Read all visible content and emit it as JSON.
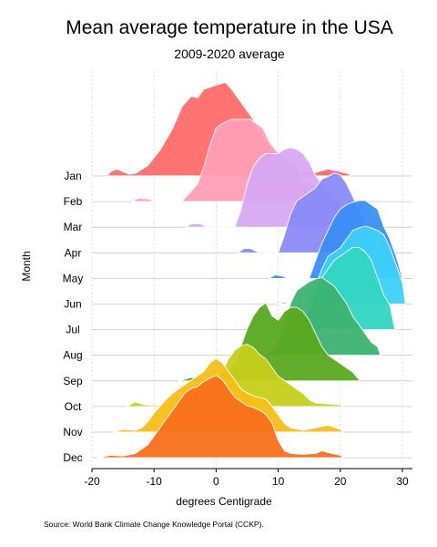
{
  "chart_data": {
    "type": "ridgeline",
    "title": "Mean average temperature in the USA",
    "subtitle": "2009-2020 average",
    "xlabel": "degrees Centigrade",
    "ylabel": "Month",
    "source": "Source: World Bank Climate Change Knowledge Portal (CCKP).",
    "xlim": [
      -20,
      30
    ],
    "x_ticks": [
      -20,
      -10,
      0,
      10,
      20,
      30
    ],
    "x_tick_labels": [
      "-20",
      "-10",
      "0",
      "10",
      "20",
      "30"
    ],
    "grid_x": true,
    "grid_y": true,
    "series": [
      {
        "name": "Jan",
        "color": "#FF6B6B",
        "points": [
          [
            -17.5,
            0
          ],
          [
            -17,
            0.05
          ],
          [
            -16,
            0.08
          ],
          [
            -14,
            0.02
          ],
          [
            -13,
            0.03
          ],
          [
            -11,
            0.12
          ],
          [
            -9,
            0.3
          ],
          [
            -7,
            0.55
          ],
          [
            -5.5,
            0.8
          ],
          [
            -4,
            0.92
          ],
          [
            -3,
            0.9
          ],
          [
            -2,
            1.0
          ],
          [
            0,
            1.05
          ],
          [
            1.5,
            1.08
          ],
          [
            2.5,
            1.0
          ],
          [
            4,
            0.85
          ],
          [
            6,
            0.65
          ],
          [
            7.5,
            0.45
          ],
          [
            9,
            0.3
          ],
          [
            10.5,
            0.12
          ],
          [
            12,
            0.05
          ],
          [
            14,
            0.05
          ],
          [
            16,
            0.04
          ],
          [
            18,
            0.08
          ],
          [
            20,
            0.05
          ],
          [
            21.5,
            0.02
          ]
        ]
      },
      {
        "name": "Feb",
        "color": "#FF9EB5",
        "points": [
          [
            -13.5,
            0
          ],
          [
            -12.5,
            0.04
          ],
          [
            -11,
            0.03
          ],
          [
            -9.5,
            0.0
          ],
          [
            -5.5,
            0
          ],
          [
            -4.5,
            0.08
          ],
          [
            -3,
            0.2
          ],
          [
            -2,
            0.4
          ],
          [
            -1,
            0.65
          ],
          [
            0,
            0.85
          ],
          [
            1,
            0.9
          ],
          [
            2.5,
            0.95
          ],
          [
            4,
            0.95
          ],
          [
            5.5,
            0.95
          ],
          [
            6.5,
            0.9
          ],
          [
            7.5,
            0.85
          ],
          [
            8.5,
            0.7
          ],
          [
            9.5,
            0.6
          ],
          [
            11,
            0.5
          ],
          [
            12,
            0.45
          ],
          [
            13,
            0.4
          ],
          [
            14,
            0.25
          ],
          [
            15.5,
            0.2
          ],
          [
            17,
            0.16
          ],
          [
            18,
            0.1
          ],
          [
            19,
            0.05
          ],
          [
            20,
            0.0
          ]
        ]
      },
      {
        "name": "Mar",
        "color": "#D7A8F2",
        "points": [
          [
            -5,
            0
          ],
          [
            -4,
            0.04
          ],
          [
            -2.5,
            0.04
          ],
          [
            -1.5,
            0.0
          ],
          [
            3,
            0
          ],
          [
            4,
            0.2
          ],
          [
            5,
            0.5
          ],
          [
            6,
            0.7
          ],
          [
            7,
            0.8
          ],
          [
            8,
            0.85
          ],
          [
            9,
            0.85
          ],
          [
            10,
            0.85
          ],
          [
            11,
            0.9
          ],
          [
            12,
            0.92
          ],
          [
            13,
            0.9
          ],
          [
            14,
            0.85
          ],
          [
            15,
            0.75
          ],
          [
            16,
            0.6
          ],
          [
            17,
            0.5
          ],
          [
            18,
            0.4
          ],
          [
            19,
            0.35
          ],
          [
            20,
            0.25
          ],
          [
            22,
            0.12
          ],
          [
            24,
            0.0
          ]
        ]
      },
      {
        "name": "Apr",
        "color": "#8A8AF8",
        "points": [
          [
            3.5,
            0
          ],
          [
            4.5,
            0.05
          ],
          [
            5.5,
            0.05
          ],
          [
            7,
            0.0
          ],
          [
            10,
            0
          ],
          [
            11,
            0.2
          ],
          [
            12,
            0.45
          ],
          [
            13,
            0.6
          ],
          [
            14,
            0.65
          ],
          [
            15,
            0.7
          ],
          [
            16,
            0.75
          ],
          [
            17,
            0.85
          ],
          [
            18,
            0.88
          ],
          [
            19,
            0.92
          ],
          [
            20,
            0.9
          ],
          [
            21,
            0.8
          ],
          [
            22,
            0.65
          ],
          [
            23,
            0.5
          ],
          [
            24,
            0.35
          ],
          [
            25,
            0.2
          ],
          [
            26,
            0.0
          ]
        ]
      },
      {
        "name": "May",
        "color": "#3B8EF8",
        "points": [
          [
            8.5,
            0
          ],
          [
            9.5,
            0.04
          ],
          [
            10.5,
            0.03
          ],
          [
            11.5,
            0.0
          ],
          [
            15,
            0
          ],
          [
            16,
            0.2
          ],
          [
            17,
            0.4
          ],
          [
            18,
            0.55
          ],
          [
            19,
            0.7
          ],
          [
            20,
            0.8
          ],
          [
            21,
            0.85
          ],
          [
            22,
            0.88
          ],
          [
            23,
            0.9
          ],
          [
            24,
            0.9
          ],
          [
            25,
            0.85
          ],
          [
            26,
            0.8
          ],
          [
            27,
            0.6
          ],
          [
            28,
            0.45
          ],
          [
            29,
            0.25
          ],
          [
            30,
            0.0
          ]
        ]
      },
      {
        "name": "Jun",
        "color": "#3DD0F8",
        "points": [
          [
            10,
            0
          ],
          [
            11,
            0.02
          ],
          [
            12,
            0.0
          ],
          [
            14,
            0
          ],
          [
            15,
            0.05
          ],
          [
            16,
            0.2
          ],
          [
            17,
            0.4
          ],
          [
            18,
            0.55
          ],
          [
            19,
            0.6
          ],
          [
            20,
            0.65
          ],
          [
            21,
            0.75
          ],
          [
            22,
            0.85
          ],
          [
            23,
            0.88
          ],
          [
            24,
            0.9
          ],
          [
            25,
            0.88
          ],
          [
            26,
            0.85
          ],
          [
            27,
            0.8
          ],
          [
            28,
            0.65
          ],
          [
            29,
            0.45
          ],
          [
            30,
            0.25
          ],
          [
            30.5,
            0.0
          ]
        ]
      },
      {
        "name": "Jul",
        "color": "#33D6C2",
        "points": [
          [
            12,
            0
          ],
          [
            14,
            0.08
          ],
          [
            15,
            0.25
          ],
          [
            16,
            0.45
          ],
          [
            17,
            0.6
          ],
          [
            18,
            0.7
          ],
          [
            19,
            0.8
          ],
          [
            20,
            0.85
          ],
          [
            21,
            0.9
          ],
          [
            22,
            0.95
          ],
          [
            23,
            0.95
          ],
          [
            24,
            0.9
          ],
          [
            25,
            0.8
          ],
          [
            26,
            0.6
          ],
          [
            27,
            0.4
          ],
          [
            28,
            0.28
          ],
          [
            28.8,
            0.0
          ]
        ]
      },
      {
        "name": "Aug",
        "color": "#3CB371",
        "points": [
          [
            7.5,
            0
          ],
          [
            9,
            0.05
          ],
          [
            10,
            0.15
          ],
          [
            11,
            0.35
          ],
          [
            12,
            0.6
          ],
          [
            13,
            0.75
          ],
          [
            14,
            0.8
          ],
          [
            15,
            0.85
          ],
          [
            16,
            0.88
          ],
          [
            17,
            0.9
          ],
          [
            18,
            0.85
          ],
          [
            19,
            0.8
          ],
          [
            20,
            0.7
          ],
          [
            21,
            0.6
          ],
          [
            22,
            0.45
          ],
          [
            23,
            0.35
          ],
          [
            24,
            0.25
          ],
          [
            25,
            0.15
          ],
          [
            26,
            0.1
          ],
          [
            26.5,
            0.0
          ]
        ]
      },
      {
        "name": "Sep",
        "color": "#5AA820",
        "points": [
          [
            -6,
            0
          ],
          [
            -4,
            0.04
          ],
          [
            -2,
            0.02
          ],
          [
            1,
            0.04
          ],
          [
            3,
            0.2
          ],
          [
            4,
            0.4
          ],
          [
            5,
            0.6
          ],
          [
            6,
            0.75
          ],
          [
            7,
            0.85
          ],
          [
            8,
            0.9
          ],
          [
            9,
            0.75
          ],
          [
            10,
            0.7
          ],
          [
            11,
            0.8
          ],
          [
            12,
            0.85
          ],
          [
            13,
            0.85
          ],
          [
            14,
            0.8
          ],
          [
            15,
            0.7
          ],
          [
            16,
            0.55
          ],
          [
            17,
            0.4
          ],
          [
            18,
            0.3
          ],
          [
            19,
            0.25
          ],
          [
            20,
            0.2
          ],
          [
            21,
            0.15
          ],
          [
            22,
            0.1
          ],
          [
            23.2,
            0.0
          ]
        ]
      },
      {
        "name": "Oct",
        "color": "#C7CF1A",
        "points": [
          [
            -14.5,
            0
          ],
          [
            -13,
            0.05
          ],
          [
            -11.5,
            0.02
          ],
          [
            -4,
            0
          ],
          [
            -2,
            0.1
          ],
          [
            -1,
            0.2
          ],
          [
            0,
            0.3
          ],
          [
            1,
            0.4
          ],
          [
            2,
            0.55
          ],
          [
            3,
            0.65
          ],
          [
            4,
            0.7
          ],
          [
            5,
            0.72
          ],
          [
            6,
            0.68
          ],
          [
            7,
            0.6
          ],
          [
            8,
            0.55
          ],
          [
            9,
            0.45
          ],
          [
            10,
            0.35
          ],
          [
            11,
            0.3
          ],
          [
            12,
            0.25
          ],
          [
            13,
            0.2
          ],
          [
            14,
            0.15
          ],
          [
            15,
            0.08
          ],
          [
            16,
            0.04
          ],
          [
            18,
            0.03
          ],
          [
            20,
            0.02
          ],
          [
            20.5,
            0.0
          ]
        ]
      },
      {
        "name": "Nov",
        "color": "#F6BE16",
        "points": [
          [
            -16.5,
            0
          ],
          [
            -15,
            0.03
          ],
          [
            -13,
            0.02
          ],
          [
            -12,
            0.05
          ],
          [
            -11,
            0.12
          ],
          [
            -10,
            0.22
          ],
          [
            -9,
            0.3
          ],
          [
            -8,
            0.38
          ],
          [
            -7,
            0.45
          ],
          [
            -6,
            0.5
          ],
          [
            -5,
            0.55
          ],
          [
            -4,
            0.6
          ],
          [
            -3,
            0.65
          ],
          [
            -2,
            0.7
          ],
          [
            -1,
            0.8
          ],
          [
            0,
            0.85
          ],
          [
            1,
            0.8
          ],
          [
            2,
            0.7
          ],
          [
            3,
            0.6
          ],
          [
            4,
            0.5
          ],
          [
            5,
            0.45
          ],
          [
            6,
            0.42
          ],
          [
            7,
            0.4
          ],
          [
            8,
            0.38
          ],
          [
            9,
            0.3
          ],
          [
            10,
            0.2
          ],
          [
            11,
            0.1
          ],
          [
            12,
            0.05
          ],
          [
            14,
            0.02
          ],
          [
            16,
            0.05
          ],
          [
            18,
            0.08
          ],
          [
            20,
            0.03
          ],
          [
            20.5,
            0.0
          ]
        ]
      },
      {
        "name": "Dec",
        "color": "#F8701A",
        "points": [
          [
            -19,
            0
          ],
          [
            -17,
            0.03
          ],
          [
            -15,
            0.02
          ],
          [
            -13,
            0.05
          ],
          [
            -11,
            0.15
          ],
          [
            -10,
            0.25
          ],
          [
            -9,
            0.35
          ],
          [
            -8,
            0.45
          ],
          [
            -7,
            0.55
          ],
          [
            -6,
            0.65
          ],
          [
            -5,
            0.75
          ],
          [
            -4,
            0.8
          ],
          [
            -3,
            0.82
          ],
          [
            -2,
            0.88
          ],
          [
            -1,
            0.92
          ],
          [
            0,
            0.95
          ],
          [
            1,
            0.9
          ],
          [
            2,
            0.8
          ],
          [
            3,
            0.7
          ],
          [
            4,
            0.65
          ],
          [
            5,
            0.6
          ],
          [
            6,
            0.58
          ],
          [
            7,
            0.55
          ],
          [
            8,
            0.5
          ],
          [
            9,
            0.4
          ],
          [
            10,
            0.2
          ],
          [
            11,
            0.08
          ],
          [
            12,
            0.05
          ],
          [
            14,
            0.04
          ],
          [
            16,
            0.05
          ],
          [
            17,
            0.08
          ],
          [
            18,
            0.06
          ],
          [
            20,
            0.03
          ],
          [
            20.5,
            0.0
          ]
        ]
      }
    ]
  }
}
